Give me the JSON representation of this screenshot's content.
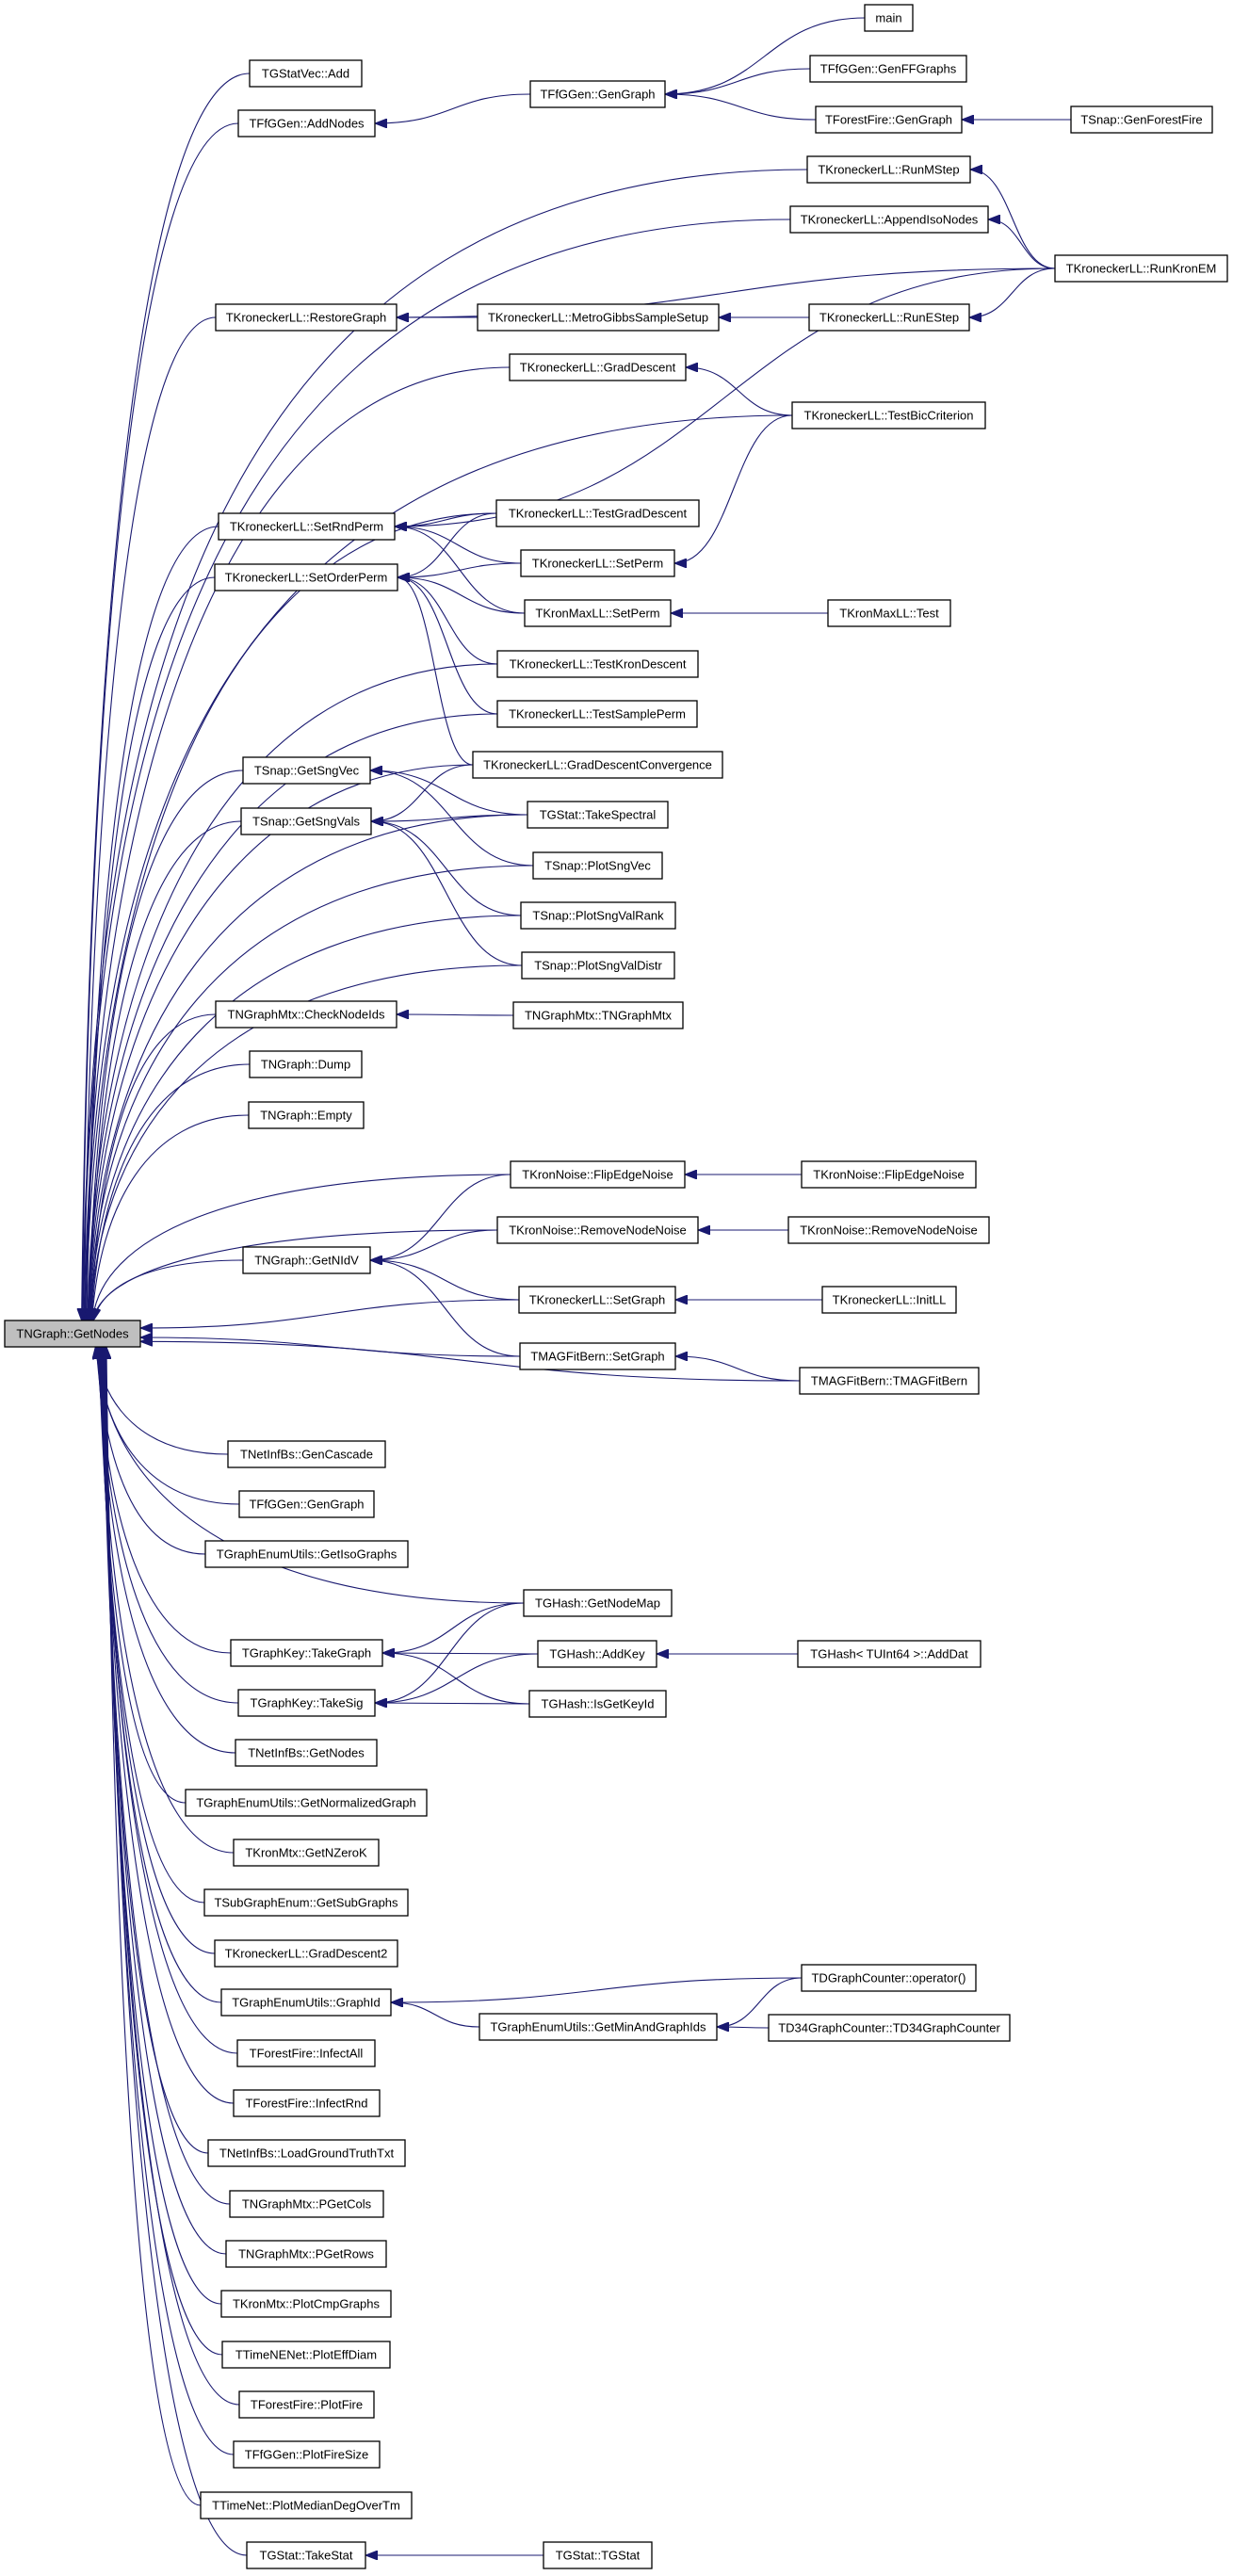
{
  "graph": {
    "type": "caller-graph",
    "edge_color": "#191970",
    "root_fill": "#bfbfbf",
    "nodes": [
      {
        "id": "getnodes",
        "label": "TNGraph::GetNodes",
        "root": true
      },
      {
        "id": "statvec_add",
        "label": "TGStatVec::Add"
      },
      {
        "id": "ffg_gengraph",
        "label": "TFfGGen::GenGraph"
      },
      {
        "id": "main",
        "label": "main"
      },
      {
        "id": "genffgraphs",
        "label": "TFfGGen::GenFFGraphs"
      },
      {
        "id": "addnodes",
        "label": "TFfGGen::AddNodes"
      },
      {
        "id": "ff_gengraph",
        "label": "TForestFire::GenGraph"
      },
      {
        "id": "genforestfire",
        "label": "TSnap::GenForestFire"
      },
      {
        "id": "runmstep",
        "label": "TKroneckerLL::RunMStep"
      },
      {
        "id": "appendiso",
        "label": "TKroneckerLL::AppendIsoNodes"
      },
      {
        "id": "runkronem",
        "label": "TKroneckerLL::RunKronEM"
      },
      {
        "id": "restoregraph",
        "label": "TKroneckerLL::RestoreGraph"
      },
      {
        "id": "metrogibbs",
        "label": "TKroneckerLL::MetroGibbsSampleSetup"
      },
      {
        "id": "runestep",
        "label": "TKroneckerLL::RunEStep"
      },
      {
        "id": "graddescent",
        "label": "TKroneckerLL::GradDescent"
      },
      {
        "id": "testbic",
        "label": "TKroneckerLL::TestBicCriterion"
      },
      {
        "id": "testgraddescent",
        "label": "TKroneckerLL::TestGradDescent"
      },
      {
        "id": "setrndperm",
        "label": "TKroneckerLL::SetRndPerm"
      },
      {
        "id": "kll_setperm",
        "label": "TKroneckerLL::SetPerm"
      },
      {
        "id": "setorderperm",
        "label": "TKroneckerLL::SetOrderPerm"
      },
      {
        "id": "kml_setperm",
        "label": "TKronMaxLL::SetPerm"
      },
      {
        "id": "kml_test",
        "label": "TKronMaxLL::Test"
      },
      {
        "id": "testkrondescent",
        "label": "TKroneckerLL::TestKronDescent"
      },
      {
        "id": "testsampleperm",
        "label": "TKroneckerLL::TestSamplePerm"
      },
      {
        "id": "gdconv",
        "label": "TKroneckerLL::GradDescentConvergence"
      },
      {
        "id": "getsngvec",
        "label": "TSnap::GetSngVec"
      },
      {
        "id": "getsngvals",
        "label": "TSnap::GetSngVals"
      },
      {
        "id": "takespectral",
        "label": "TGStat::TakeSpectral"
      },
      {
        "id": "plotsngvec",
        "label": "TSnap::PlotSngVec"
      },
      {
        "id": "plotsngvalrank",
        "label": "TSnap::PlotSngValRank"
      },
      {
        "id": "plotsngvaldistr",
        "label": "TSnap::PlotSngValDistr"
      },
      {
        "id": "checknodeids",
        "label": "TNGraphMtx::CheckNodeIds"
      },
      {
        "id": "tngraphmtx",
        "label": "TNGraphMtx::TNGraphMtx"
      },
      {
        "id": "dump",
        "label": "TNGraph::Dump"
      },
      {
        "id": "empty",
        "label": "TNGraph::Empty"
      },
      {
        "id": "flip1",
        "label": "TKronNoise::FlipEdgeNoise"
      },
      {
        "id": "flip2",
        "label": "TKronNoise::FlipEdgeNoise"
      },
      {
        "id": "remove1",
        "label": "TKronNoise::RemoveNodeNoise"
      },
      {
        "id": "remove2",
        "label": "TKronNoise::RemoveNodeNoise"
      },
      {
        "id": "getnidv",
        "label": "TNGraph::GetNIdV"
      },
      {
        "id": "kll_setgraph",
        "label": "TKroneckerLL::SetGraph"
      },
      {
        "id": "initll",
        "label": "TKroneckerLL::InitLL"
      },
      {
        "id": "mag_setgraph",
        "label": "TMAGFitBern::SetGraph"
      },
      {
        "id": "tmagfitbern",
        "label": "TMAGFitBern::TMAGFitBern"
      },
      {
        "id": "gencascade",
        "label": "TNetInfBs::GenCascade"
      },
      {
        "id": "ffg_gengraph2",
        "label": "TFfGGen::GenGraph"
      },
      {
        "id": "getisographs",
        "label": "TGraphEnumUtils::GetIsoGraphs"
      },
      {
        "id": "getnodemap",
        "label": "TGHash::GetNodeMap"
      },
      {
        "id": "takegraph",
        "label": "TGraphKey::TakeGraph"
      },
      {
        "id": "addkey",
        "label": "TGHash::AddKey"
      },
      {
        "id": "adddat",
        "label": "TGHash< TUInt64 >::AddDat"
      },
      {
        "id": "takesig",
        "label": "TGraphKey::TakeSig"
      },
      {
        "id": "isgetkeyid",
        "label": "TGHash::IsGetKeyId"
      },
      {
        "id": "netinf_getnodes",
        "label": "TNetInfBs::GetNodes"
      },
      {
        "id": "getnormalized",
        "label": "TGraphEnumUtils::GetNormalizedGraph"
      },
      {
        "id": "getnzerok",
        "label": "TKronMtx::GetNZeroK"
      },
      {
        "id": "getsubgraphs",
        "label": "TSubGraphEnum::GetSubGraphs"
      },
      {
        "id": "graddescent2",
        "label": "TKroneckerLL::GradDescent2"
      },
      {
        "id": "graphid",
        "label": "TGraphEnumUtils::GraphId"
      },
      {
        "id": "dgc_operator",
        "label": "TDGraphCounter::operator()"
      },
      {
        "id": "getminand",
        "label": "TGraphEnumUtils::GetMinAndGraphIds"
      },
      {
        "id": "td34",
        "label": "TD34GraphCounter::TD34GraphCounter"
      },
      {
        "id": "infectall",
        "label": "TForestFire::InfectAll"
      },
      {
        "id": "infectrnd",
        "label": "TForestFire::InfectRnd"
      },
      {
        "id": "loadground",
        "label": "TNetInfBs::LoadGroundTruthTxt"
      },
      {
        "id": "pgetcols",
        "label": "TNGraphMtx::PGetCols"
      },
      {
        "id": "pgetrows",
        "label": "TNGraphMtx::PGetRows"
      },
      {
        "id": "plotcmp",
        "label": "TKronMtx::PlotCmpGraphs"
      },
      {
        "id": "ploteffdiam",
        "label": "TTimeNENet::PlotEffDiam"
      },
      {
        "id": "plotfire",
        "label": "TForestFire::PlotFire"
      },
      {
        "id": "plotfiresize",
        "label": "TFfGGen::PlotFireSize"
      },
      {
        "id": "plotmedian",
        "label": "TTimeNet::PlotMedianDegOverTm"
      },
      {
        "id": "takestat",
        "label": "TGStat::TakeStat"
      },
      {
        "id": "tgstat",
        "label": "TGStat::TGStat"
      }
    ],
    "edges": [
      [
        "statvec_add",
        "getnodes"
      ],
      [
        "addnodes",
        "getnodes"
      ],
      [
        "runmstep",
        "getnodes"
      ],
      [
        "appendiso",
        "getnodes"
      ],
      [
        "restoregraph",
        "getnodes"
      ],
      [
        "graddescent",
        "getnodes"
      ],
      [
        "testbic",
        "getnodes"
      ],
      [
        "testgraddescent",
        "getnodes"
      ],
      [
        "setrndperm",
        "getnodes"
      ],
      [
        "setorderperm",
        "getnodes"
      ],
      [
        "testkrondescent",
        "getnodes"
      ],
      [
        "testsampleperm",
        "getnodes"
      ],
      [
        "gdconv",
        "getnodes"
      ],
      [
        "getsngvec",
        "getnodes"
      ],
      [
        "getsngvals",
        "getnodes"
      ],
      [
        "takespectral",
        "getnodes"
      ],
      [
        "plotsngvec",
        "getnodes"
      ],
      [
        "plotsngvalrank",
        "getnodes"
      ],
      [
        "plotsngvaldistr",
        "getnodes"
      ],
      [
        "checknodeids",
        "getnodes"
      ],
      [
        "dump",
        "getnodes"
      ],
      [
        "empty",
        "getnodes"
      ],
      [
        "flip1",
        "getnodes"
      ],
      [
        "remove1",
        "getnodes"
      ],
      [
        "getnidv",
        "getnodes"
      ],
      [
        "kll_setgraph",
        "getnodes"
      ],
      [
        "mag_setgraph",
        "getnodes"
      ],
      [
        "tmagfitbern",
        "getnodes"
      ],
      [
        "gencascade",
        "getnodes"
      ],
      [
        "ffg_gengraph2",
        "getnodes"
      ],
      [
        "getisographs",
        "getnodes"
      ],
      [
        "getnodemap",
        "getnodes"
      ],
      [
        "takegraph",
        "getnodes"
      ],
      [
        "takesig",
        "getnodes"
      ],
      [
        "netinf_getnodes",
        "getnodes"
      ],
      [
        "getnormalized",
        "getnodes"
      ],
      [
        "getnzerok",
        "getnodes"
      ],
      [
        "getsubgraphs",
        "getnodes"
      ],
      [
        "graddescent2",
        "getnodes"
      ],
      [
        "graphid",
        "getnodes"
      ],
      [
        "infectall",
        "getnodes"
      ],
      [
        "infectrnd",
        "getnodes"
      ],
      [
        "loadground",
        "getnodes"
      ],
      [
        "pgetcols",
        "getnodes"
      ],
      [
        "pgetrows",
        "getnodes"
      ],
      [
        "plotcmp",
        "getnodes"
      ],
      [
        "ploteffdiam",
        "getnodes"
      ],
      [
        "plotfire",
        "getnodes"
      ],
      [
        "plotfiresize",
        "getnodes"
      ],
      [
        "plotmedian",
        "getnodes"
      ],
      [
        "takestat",
        "getnodes"
      ],
      [
        "ffg_gengraph",
        "addnodes"
      ],
      [
        "main",
        "ffg_gengraph"
      ],
      [
        "genffgraphs",
        "ffg_gengraph"
      ],
      [
        "ff_gengraph",
        "ffg_gengraph"
      ],
      [
        "genforestfire",
        "ff_gengraph"
      ],
      [
        "runkronem",
        "runmstep"
      ],
      [
        "runkronem",
        "appendiso"
      ],
      [
        "runkronem",
        "restoregraph"
      ],
      [
        "runkronem",
        "runestep"
      ],
      [
        "runkronem",
        "setrndperm"
      ],
      [
        "metrogibbs",
        "restoregraph"
      ],
      [
        "runestep",
        "metrogibbs"
      ],
      [
        "testbic",
        "graddescent"
      ],
      [
        "testbic",
        "kll_setperm"
      ],
      [
        "testgraddescent",
        "setrndperm"
      ],
      [
        "testgraddescent",
        "setorderperm"
      ],
      [
        "kll_setperm",
        "setrndperm"
      ],
      [
        "kll_setperm",
        "setorderperm"
      ],
      [
        "kml_setperm",
        "setrndperm"
      ],
      [
        "kml_setperm",
        "setorderperm"
      ],
      [
        "kml_test",
        "kml_setperm"
      ],
      [
        "testkrondescent",
        "setorderperm"
      ],
      [
        "testsampleperm",
        "setorderperm"
      ],
      [
        "gdconv",
        "setorderperm"
      ],
      [
        "gdconv",
        "getsngvals"
      ],
      [
        "takespectral",
        "getsngvec"
      ],
      [
        "takespectral",
        "getsngvals"
      ],
      [
        "plotsngvec",
        "getsngvec"
      ],
      [
        "plotsngvalrank",
        "getsngvals"
      ],
      [
        "plotsngvaldistr",
        "getsngvals"
      ],
      [
        "tngraphmtx",
        "checknodeids"
      ],
      [
        "flip1",
        "getnidv"
      ],
      [
        "remove1",
        "getnidv"
      ],
      [
        "kll_setgraph",
        "getnidv"
      ],
      [
        "mag_setgraph",
        "getnidv"
      ],
      [
        "flip2",
        "flip1"
      ],
      [
        "remove2",
        "remove1"
      ],
      [
        "initll",
        "kll_setgraph"
      ],
      [
        "tmagfitbern",
        "mag_setgraph"
      ],
      [
        "getnodemap",
        "takegraph"
      ],
      [
        "getnodemap",
        "takesig"
      ],
      [
        "addkey",
        "takegraph"
      ],
      [
        "addkey",
        "takesig"
      ],
      [
        "isgetkeyid",
        "takegraph"
      ],
      [
        "isgetkeyid",
        "takesig"
      ],
      [
        "adddat",
        "addkey"
      ],
      [
        "dgc_operator",
        "graphid"
      ],
      [
        "getminand",
        "graphid"
      ],
      [
        "dgc_operator",
        "getminand"
      ],
      [
        "td34",
        "getminand"
      ],
      [
        "tgstat",
        "takestat"
      ]
    ]
  }
}
